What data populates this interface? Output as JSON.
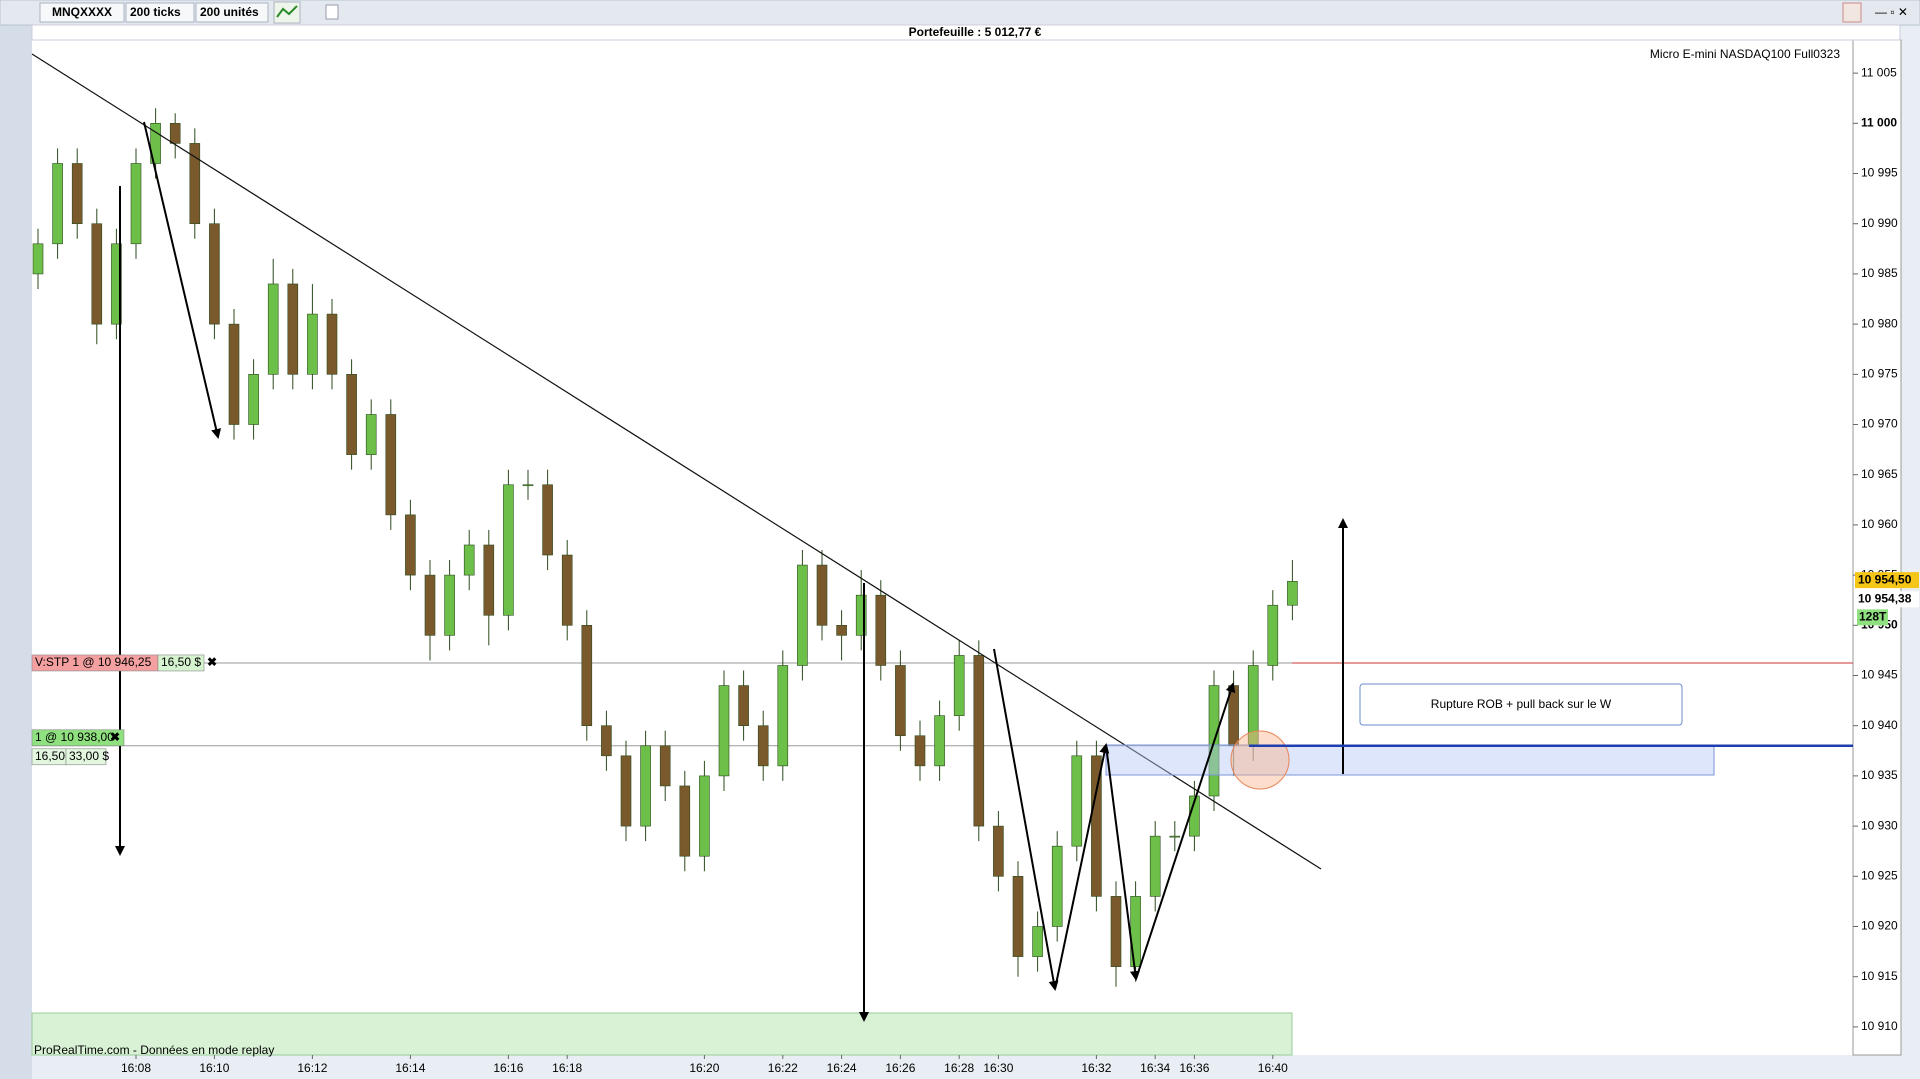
{
  "toolbar": {
    "instrument": "MNQXXXX",
    "interval": "200 ticks",
    "units": "200 unités"
  },
  "portfolio": "Portefeuille : 5 012,77 €",
  "footer": "ProRealTime.com - Données en mode replay",
  "chart_data": {
    "type": "candlestick",
    "title": "Micro E-mini NASDAQ100 Full0323",
    "categories": [
      null,
      null,
      null,
      null,
      null,
      "16:08",
      null,
      null,
      null,
      "16:10",
      null,
      null,
      null,
      null,
      "16:12",
      null,
      null,
      null,
      null,
      "16:14",
      null,
      null,
      null,
      null,
      "16:16",
      null,
      null,
      "16:18",
      null,
      null,
      null,
      null,
      null,
      null,
      "16:20",
      null,
      null,
      null,
      "16:22",
      null,
      null,
      "16:24",
      null,
      null,
      "16:26",
      null,
      null,
      "16:28",
      null,
      "16:30",
      null,
      null,
      null,
      null,
      "16:32",
      null,
      null,
      "16:34",
      null,
      "16:36",
      null,
      null,
      null,
      "16:40",
      null
    ],
    "open": [
      10985,
      10988,
      10996,
      10990,
      10980,
      10988,
      10996,
      11000,
      10998,
      10990,
      10980,
      10970,
      10975,
      10984,
      10975,
      10981,
      10975,
      10967,
      10971,
      10961,
      10955,
      10949,
      10955,
      10958,
      10951,
      10964,
      10964,
      10957,
      10950,
      10940,
      10937,
      10930,
      10938,
      10934,
      10927,
      10935,
      10944,
      10940,
      10936,
      10946,
      10956,
      10950,
      10949,
      10953,
      10946,
      10939,
      10936,
      10941,
      10947,
      10930,
      10925,
      10917,
      10920,
      10928,
      10937,
      10923,
      10916,
      10923,
      10929,
      10929,
      10933,
      10944,
      10938,
      10946,
      10952
    ],
    "high": [
      10989.5,
      10997.5,
      10997.5,
      10991.5,
      10989.5,
      10997.5,
      11001.5,
      11001,
      10999.5,
      10991.5,
      10981.5,
      10976.5,
      10986.5,
      10985.5,
      10984,
      10982.5,
      10976.5,
      10972.5,
      10972.5,
      10962.5,
      10956.5,
      10956.5,
      10959.5,
      10959.5,
      10965.5,
      10965.5,
      10965.5,
      10958.5,
      10951.5,
      10941.5,
      10938.5,
      10939.5,
      10939.5,
      10935.5,
      10936.5,
      10945.5,
      10945.5,
      10941.5,
      10947.5,
      10957.5,
      10957.5,
      10951.5,
      10955.5,
      10954.5,
      10947.5,
      10940.5,
      10942.5,
      10948.5,
      10948.5,
      10931.5,
      10926.5,
      10921.5,
      10929.5,
      10938.5,
      10938.5,
      10924.5,
      10924.5,
      10930.5,
      10930.5,
      10934.5,
      10945.5,
      10945.5,
      10947.5,
      10953.5,
      10956.5
    ],
    "low": [
      10983.5,
      10986.5,
      10988.5,
      10978,
      10978.5,
      10986.5,
      10994.5,
      10996.5,
      10988.5,
      10978.5,
      10968.5,
      10968.5,
      10973.5,
      10973.5,
      10973.5,
      10973.5,
      10965.5,
      10965.5,
      10959.5,
      10953.5,
      10946.5,
      10947.5,
      10953.5,
      10948,
      10949.5,
      10962.5,
      10955.5,
      10948.5,
      10938.5,
      10935.5,
      10928.5,
      10928.5,
      10932.5,
      10925.5,
      10925.5,
      10933.5,
      10938.5,
      10934.5,
      10934.5,
      10944.5,
      10948.5,
      10946.5,
      10947.5,
      10944.5,
      10937.5,
      10934.5,
      10934.5,
      10939.5,
      10928.5,
      10923.5,
      10915,
      10915.5,
      10918.5,
      10926.5,
      10921.5,
      10914,
      10914.5,
      10921.5,
      10927.5,
      10927.5,
      10931.5,
      10935,
      10936.5,
      10944.5,
      10950.5
    ],
    "close": [
      10988,
      10996,
      10990,
      10980,
      10988,
      10996,
      11000,
      10998,
      10990,
      10980,
      10970,
      10975,
      10984,
      10975,
      10981,
      10975,
      10967,
      10971,
      10961,
      10955,
      10949,
      10955,
      10958,
      10951,
      10964,
      10964,
      10957,
      10950,
      10940,
      10937,
      10930,
      10938,
      10934,
      10927,
      10935,
      10944,
      10940,
      10936,
      10946,
      10956,
      10950,
      10949,
      10953,
      10946,
      10939,
      10936,
      10941,
      10947,
      10930,
      10925,
      10917,
      10920,
      10928,
      10937,
      10923,
      10916,
      10923,
      10929,
      10929,
      10933,
      10944,
      10938,
      10946,
      10952,
      10954.38
    ],
    "last_close_label": "10 954,38",
    "up_color": "#6cc04a",
    "down_color": "#7a5a2c",
    "ylim": [
      10907.2,
      11008.3
    ],
    "yticks": [
      {
        "value": 11005,
        "label": "11 005"
      },
      {
        "value": 11000,
        "label": "11 000"
      },
      {
        "value": 10995,
        "label": "10 995"
      },
      {
        "value": 10990,
        "label": "10 990"
      },
      {
        "value": 10985,
        "label": "10 985"
      },
      {
        "value": 10980,
        "label": "10 980"
      },
      {
        "value": 10975,
        "label": "10 975"
      },
      {
        "value": 10970,
        "label": "10 970"
      },
      {
        "value": 10965,
        "label": "10 965"
      },
      {
        "value": 10960,
        "label": "10 960"
      },
      {
        "value": 10955,
        "label": "10 955"
      },
      {
        "value": 10950,
        "label": "10 950"
      },
      {
        "value": 10945,
        "label": "10 945"
      },
      {
        "value": 10940,
        "label": "10 940"
      },
      {
        "value": 10935,
        "label": "10 935"
      },
      {
        "value": 10930,
        "label": "10 930"
      },
      {
        "value": 10925,
        "label": "10 925"
      },
      {
        "value": 10920,
        "label": "10 920"
      },
      {
        "value": 10915,
        "label": "10 915"
      },
      {
        "value": 10910,
        "label": "10 910"
      }
    ],
    "last_price": {
      "value": 10954.5,
      "label": "10 954,50"
    },
    "volume_label": "128T",
    "orders": [
      {
        "label": "V:STP  1 @ 10 946,25",
        "price": 10946.25,
        "gain": "16,50 $"
      },
      {
        "label": "1 @ 10 938,00",
        "price": 10938,
        "gain": "16,50",
        "gain_total": "33,00 $"
      }
    ],
    "annotation": "Rupture ROB + pull back sur le W"
  }
}
